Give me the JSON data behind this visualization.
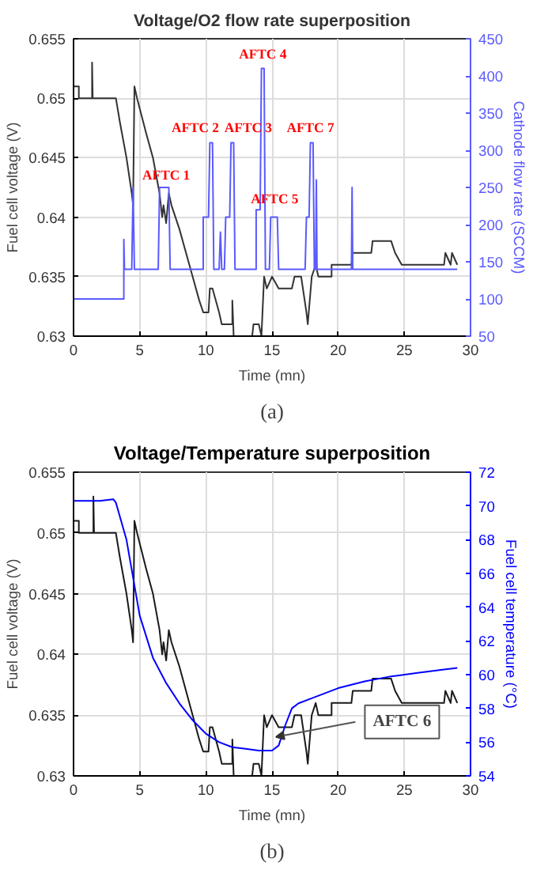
{
  "chart_data": [
    {
      "type": "line",
      "title": "Voltage/O2 flow rate superposition",
      "xlabel": "Time (mn)",
      "ylabel": "Fuel cell voltage (V)",
      "y2label": "Cathode flow rate (SCCM)",
      "xlim": [
        0,
        30
      ],
      "xticks": [
        0,
        5,
        10,
        15,
        20,
        25,
        30
      ],
      "ylim": [
        0.63,
        0.655
      ],
      "yticks": [
        0.63,
        0.635,
        0.64,
        0.645,
        0.65,
        0.655
      ],
      "y2lim": [
        50,
        450
      ],
      "y2ticks": [
        50,
        100,
        150,
        200,
        250,
        300,
        350,
        400,
        450
      ],
      "grid": true,
      "series": [
        {
          "color": "#333333",
          "x": [
            0,
            0.4,
            0.4,
            1.4,
            1.4,
            1.45,
            3.2,
            3.5,
            4.0,
            4.4,
            4.5,
            4.6,
            4.8,
            5.5,
            6.0,
            6.5,
            6.7,
            6.8,
            7.0,
            7.2,
            7.4,
            8.0,
            8.5,
            9.0,
            9.5,
            9.8,
            10.2,
            10.3,
            10.5,
            11.0,
            11.2,
            11.5,
            12.0,
            12.0,
            12.1,
            13.5,
            13.6,
            14.0,
            14.2,
            14.4,
            14.6,
            15.0,
            15.5,
            16.5,
            16.7,
            17.2,
            17.6,
            17.7,
            18.0,
            18.3,
            18.5,
            19.5,
            19.5,
            21.0,
            21.1,
            22.5,
            22.6,
            24.0,
            24.3,
            24.8,
            28.0,
            28.1,
            28.5,
            28.6,
            29.0
          ],
          "values": [
            0.651,
            0.651,
            0.65,
            0.65,
            0.653,
            0.65,
            0.65,
            0.648,
            0.645,
            0.642,
            0.641,
            0.651,
            0.65,
            0.647,
            0.645,
            0.642,
            0.64,
            0.641,
            0.6395,
            0.642,
            0.641,
            0.639,
            0.637,
            0.635,
            0.633,
            0.632,
            0.632,
            0.634,
            0.634,
            0.632,
            0.631,
            0.631,
            0.631,
            0.633,
            0.63,
            0.63,
            0.631,
            0.631,
            0.63,
            0.635,
            0.634,
            0.635,
            0.634,
            0.634,
            0.635,
            0.635,
            0.632,
            0.631,
            0.635,
            0.636,
            0.635,
            0.635,
            0.636,
            0.636,
            0.637,
            0.637,
            0.638,
            0.638,
            0.637,
            0.636,
            0.636,
            0.637,
            0.636,
            0.637,
            0.636
          ]
        },
        {
          "color": "#5a5aff",
          "axis": "y2",
          "x": [
            0,
            3.8,
            3.8,
            3.85,
            4.4,
            4.5,
            4.6,
            6.4,
            6.5,
            7.2,
            7.3,
            9.8,
            9.8,
            10.2,
            10.3,
            10.5,
            10.6,
            11.0,
            11.1,
            11.2,
            11.4,
            11.5,
            11.8,
            11.9,
            12.1,
            12.2,
            13.8,
            13.8,
            14.1,
            14.2,
            14.4,
            14.5,
            14.8,
            14.9,
            15.4,
            15.5,
            17.5,
            17.6,
            17.8,
            17.9,
            18.1,
            18.2,
            18.3,
            18.35,
            18.4,
            21.0,
            21.05,
            21.1,
            29.0
          ],
          "values": [
            100,
            100,
            180,
            140,
            140,
            250,
            140,
            140,
            250,
            250,
            140,
            140,
            210,
            210,
            310,
            310,
            140,
            140,
            190,
            140,
            140,
            210,
            210,
            310,
            310,
            140,
            140,
            220,
            220,
            410,
            410,
            140,
            140,
            210,
            210,
            140,
            140,
            210,
            210,
            310,
            310,
            140,
            140,
            260,
            140,
            140,
            250,
            140,
            140
          ]
        }
      ],
      "annotations": [
        {
          "text": "AFTC 1",
          "x": 7.0,
          "y": 0.6425
        },
        {
          "text": "AFTC 2",
          "x": 10.4,
          "y": 0.6465
        },
        {
          "text": "AFTC 3",
          "x": 12.0,
          "y": 0.6465
        },
        {
          "text": "AFTC 4",
          "x": 14.3,
          "y": 0.6527
        },
        {
          "text": "AFTC 5",
          "x": 15.2,
          "y": 0.6405
        },
        {
          "text": "AFTC 7",
          "x": 17.9,
          "y": 0.6465
        },
        "(a)"
      ]
    },
    {
      "type": "line",
      "title": "Voltage/Temperature superposition",
      "xlabel": "Time (mn)",
      "ylabel": "Fuel cell voltage (V)",
      "y2label": "Fuel cell temperature (°C)",
      "xlim": [
        0,
        30
      ],
      "xticks": [
        0,
        5,
        10,
        15,
        20,
        25,
        30
      ],
      "ylim": [
        0.63,
        0.655
      ],
      "yticks": [
        0.63,
        0.635,
        0.64,
        0.645,
        0.65,
        0.655
      ],
      "y2lim": [
        54,
        72
      ],
      "y2ticks": [
        54,
        56,
        58,
        60,
        62,
        64,
        66,
        68,
        70,
        72
      ],
      "grid": true,
      "series": [
        {
          "color": "#1a1a1a",
          "x": [
            0,
            0.4,
            0.4,
            1.5,
            1.5,
            1.55,
            3.2,
            3.5,
            4.0,
            4.4,
            4.5,
            4.6,
            4.8,
            5.5,
            6.0,
            6.5,
            6.7,
            6.8,
            7.0,
            7.2,
            7.4,
            8.0,
            8.5,
            9.0,
            9.5,
            9.8,
            10.2,
            10.3,
            10.5,
            11.0,
            11.2,
            11.5,
            12.0,
            12.0,
            12.1,
            13.5,
            13.6,
            14.0,
            14.2,
            14.4,
            14.6,
            15.0,
            15.5,
            16.5,
            16.7,
            17.2,
            17.6,
            17.7,
            18.0,
            18.3,
            18.5,
            19.5,
            19.5,
            21.0,
            21.1,
            22.5,
            22.6,
            24.0,
            24.3,
            24.8,
            28.0,
            28.1,
            28.5,
            28.6,
            29.0
          ],
          "values": [
            0.651,
            0.651,
            0.65,
            0.65,
            0.653,
            0.65,
            0.65,
            0.648,
            0.645,
            0.642,
            0.641,
            0.651,
            0.65,
            0.647,
            0.645,
            0.642,
            0.64,
            0.641,
            0.6395,
            0.642,
            0.641,
            0.639,
            0.637,
            0.635,
            0.633,
            0.632,
            0.632,
            0.634,
            0.634,
            0.632,
            0.631,
            0.631,
            0.631,
            0.633,
            0.63,
            0.63,
            0.631,
            0.631,
            0.63,
            0.635,
            0.634,
            0.635,
            0.634,
            0.634,
            0.635,
            0.635,
            0.632,
            0.631,
            0.635,
            0.636,
            0.635,
            0.635,
            0.636,
            0.636,
            0.637,
            0.637,
            0.638,
            0.638,
            0.637,
            0.636,
            0.636,
            0.637,
            0.636,
            0.637,
            0.636
          ]
        },
        {
          "color": "#0000ff",
          "axis": "y2",
          "x": [
            0,
            2,
            3,
            3.2,
            4,
            5,
            6,
            7,
            8,
            9,
            10,
            11,
            12,
            13,
            14,
            15,
            15.5,
            16,
            16.5,
            17,
            18,
            20,
            22,
            24,
            26,
            28,
            29
          ],
          "values": [
            70.3,
            70.3,
            70.4,
            70.2,
            68,
            63.5,
            61,
            59.5,
            58.3,
            57.3,
            56.5,
            56,
            55.7,
            55.6,
            55.5,
            55.5,
            55.8,
            57,
            58,
            58.3,
            58.6,
            59.2,
            59.6,
            59.9,
            60.1,
            60.3,
            60.4
          ]
        }
      ],
      "annotations": [
        {
          "text": "AFTC 6",
          "x": 15.3,
          "y": 0.6332
        },
        "(b)"
      ]
    }
  ]
}
